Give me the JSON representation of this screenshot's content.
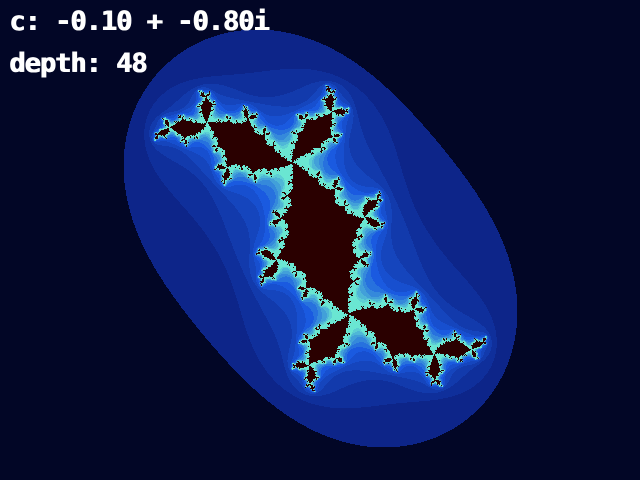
{
  "hud": {
    "c_text": "c: -0.10 + -0.80i",
    "depth_text": "depth: 48"
  },
  "fractal": {
    "type": "julia",
    "c_re": -0.1,
    "c_im": -0.8,
    "max_iterations": 48
  },
  "colors": {
    "background": "#020626",
    "interior": "#2a0000",
    "halo_light": "#6ae6d2",
    "halo_mid": "#1a5ae0",
    "halo_dark": "#0a1a78",
    "text": "#ffffff"
  }
}
